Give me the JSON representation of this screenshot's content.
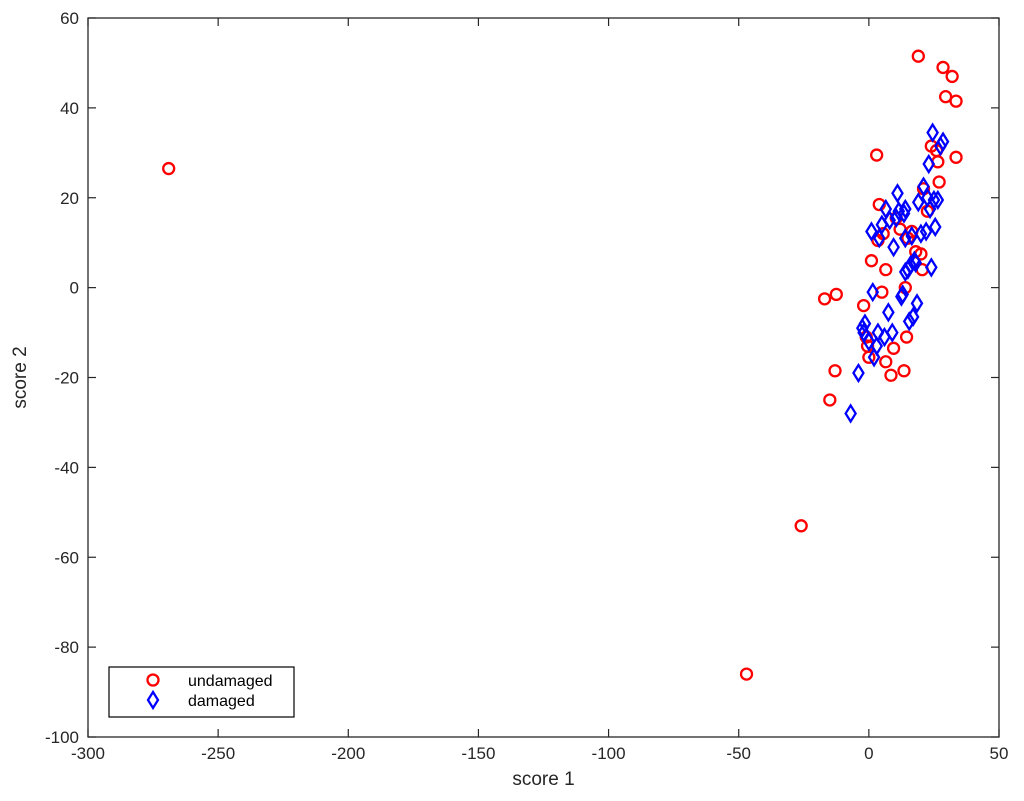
{
  "chart_data": {
    "type": "scatter",
    "title": "",
    "xlabel": "score 1",
    "ylabel": "score 2",
    "xlim": [
      -300,
      50
    ],
    "ylim": [
      -100,
      60
    ],
    "xticks": [
      -300,
      -250,
      -200,
      -150,
      -100,
      -50,
      0,
      50
    ],
    "yticks": [
      -100,
      -80,
      -60,
      -40,
      -20,
      0,
      20,
      40,
      60
    ],
    "grid": false,
    "legend_position": "bottom-left",
    "series": [
      {
        "name": "undamaged",
        "marker": "circle",
        "color": "#ff0000",
        "points": [
          [
            -269,
            26.5
          ],
          [
            -47,
            -86
          ],
          [
            -26,
            -53
          ],
          [
            -15,
            -25
          ],
          [
            -13,
            -18.5
          ],
          [
            -17,
            -2.5
          ],
          [
            -12.5,
            -1.5
          ],
          [
            -2,
            -4
          ],
          [
            -1,
            -11
          ],
          [
            -0.5,
            -13
          ],
          [
            0,
            -15.5
          ],
          [
            1,
            6
          ],
          [
            3,
            29.5
          ],
          [
            3.5,
            10.5
          ],
          [
            4,
            18.5
          ],
          [
            5,
            -1
          ],
          [
            5.5,
            12
          ],
          [
            6.5,
            4
          ],
          [
            6.5,
            -16.5
          ],
          [
            8.5,
            -19.5
          ],
          [
            9.5,
            -13.5
          ],
          [
            10.5,
            15.5
          ],
          [
            12,
            13
          ],
          [
            13.5,
            -18.5
          ],
          [
            14,
            0
          ],
          [
            14.5,
            -11
          ],
          [
            15,
            11
          ],
          [
            16.5,
            12.5
          ],
          [
            18,
            8
          ],
          [
            19,
            51.5
          ],
          [
            20,
            7.5
          ],
          [
            20.5,
            4
          ],
          [
            21,
            22
          ],
          [
            22.5,
            17
          ],
          [
            24,
            31.5
          ],
          [
            26,
            30.5
          ],
          [
            26.5,
            28
          ],
          [
            27,
            23.5
          ],
          [
            28.5,
            49
          ],
          [
            29.5,
            42.5
          ],
          [
            32,
            47
          ],
          [
            33.5,
            41.5
          ],
          [
            33.5,
            29
          ]
        ]
      },
      {
        "name": "damaged",
        "marker": "diamond",
        "color": "#0000ff",
        "points": [
          [
            -7,
            -28
          ],
          [
            -4,
            -19
          ],
          [
            -2.5,
            -9
          ],
          [
            -2,
            -10
          ],
          [
            -1.5,
            -8
          ],
          [
            0,
            -12
          ],
          [
            1,
            12.5
          ],
          [
            1.5,
            -1
          ],
          [
            2,
            -15.5
          ],
          [
            3,
            -13
          ],
          [
            3.5,
            -10
          ],
          [
            4,
            11
          ],
          [
            5,
            14
          ],
          [
            6,
            -11
          ],
          [
            6.5,
            17.5
          ],
          [
            7.5,
            -5.5
          ],
          [
            8,
            15
          ],
          [
            9,
            -10
          ],
          [
            9.5,
            9
          ],
          [
            10.5,
            15.5
          ],
          [
            11,
            21
          ],
          [
            11.5,
            17
          ],
          [
            12.5,
            -2
          ],
          [
            13,
            -1.5
          ],
          [
            13.5,
            16.5
          ],
          [
            14,
            17.5
          ],
          [
            14,
            3.5
          ],
          [
            14,
            11
          ],
          [
            15,
            4
          ],
          [
            15.5,
            -7.5
          ],
          [
            16,
            5
          ],
          [
            16.5,
            11.5
          ],
          [
            17,
            -6.5
          ],
          [
            17.5,
            6
          ],
          [
            18,
            5.5
          ],
          [
            18.5,
            -3.5
          ],
          [
            19,
            19
          ],
          [
            20,
            12
          ],
          [
            21,
            22.5
          ],
          [
            22,
            12.5
          ],
          [
            22.5,
            20
          ],
          [
            23,
            27.5
          ],
          [
            23.5,
            17.5
          ],
          [
            24,
            4.5
          ],
          [
            24.5,
            34.5
          ],
          [
            25,
            19.5
          ],
          [
            25.5,
            13.5
          ],
          [
            26.5,
            19.5
          ],
          [
            27.5,
            31.5
          ],
          [
            28.5,
            32.5
          ]
        ]
      }
    ]
  }
}
